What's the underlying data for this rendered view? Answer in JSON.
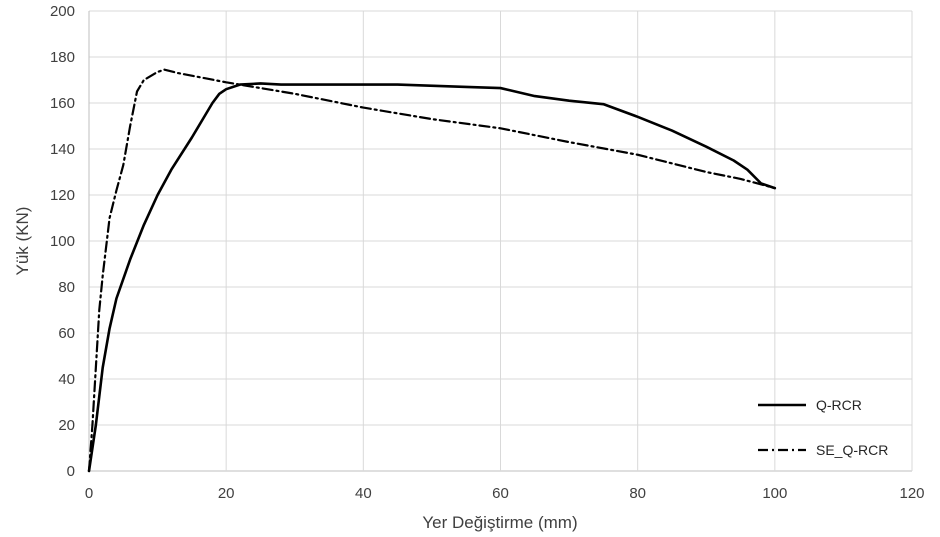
{
  "chart_data": {
    "type": "line",
    "title": "",
    "xlabel": "Yer Değiştirme (mm)",
    "ylabel": "Yük (KN)",
    "xlim": [
      0,
      120
    ],
    "ylim": [
      0,
      200
    ],
    "xticks": [
      0,
      20,
      40,
      60,
      80,
      100,
      120
    ],
    "yticks": [
      0,
      20,
      40,
      60,
      80,
      100,
      120,
      140,
      160,
      180,
      200
    ],
    "grid": true,
    "legend_position": "bottom-right",
    "series": [
      {
        "name": "Q-RCR",
        "style": "solid",
        "color": "#000000",
        "points": [
          [
            0,
            0
          ],
          [
            1,
            20
          ],
          [
            2,
            45
          ],
          [
            3,
            62
          ],
          [
            4,
            75
          ],
          [
            6,
            92
          ],
          [
            8,
            107
          ],
          [
            10,
            120
          ],
          [
            12,
            131
          ],
          [
            15,
            145
          ],
          [
            17,
            155
          ],
          [
            18,
            160
          ],
          [
            19,
            164
          ],
          [
            20,
            166
          ],
          [
            22,
            168
          ],
          [
            25,
            168.5
          ],
          [
            28,
            168
          ],
          [
            35,
            168
          ],
          [
            45,
            168
          ],
          [
            55,
            167
          ],
          [
            60,
            166.5
          ],
          [
            65,
            163
          ],
          [
            70,
            161
          ],
          [
            75,
            159.5
          ],
          [
            80,
            154
          ],
          [
            85,
            148
          ],
          [
            90,
            141
          ],
          [
            94,
            135
          ],
          [
            96,
            131
          ],
          [
            98,
            125
          ],
          [
            100,
            123
          ]
        ]
      },
      {
        "name": "SE_Q-RCR",
        "style": "dashdot",
        "color": "#000000",
        "points": [
          [
            0,
            0
          ],
          [
            0.5,
            20
          ],
          [
            1,
            45
          ],
          [
            1.5,
            70
          ],
          [
            2,
            85
          ],
          [
            3,
            110
          ],
          [
            4,
            122
          ],
          [
            5,
            133
          ],
          [
            6,
            150
          ],
          [
            7,
            165
          ],
          [
            8,
            170
          ],
          [
            10,
            173.5
          ],
          [
            11,
            174.5
          ],
          [
            13,
            173
          ],
          [
            20,
            169
          ],
          [
            30,
            164
          ],
          [
            40,
            158
          ],
          [
            50,
            153
          ],
          [
            60,
            149
          ],
          [
            70,
            143
          ],
          [
            80,
            137.5
          ],
          [
            90,
            130
          ],
          [
            95,
            127
          ],
          [
            100,
            123
          ]
        ]
      }
    ]
  }
}
